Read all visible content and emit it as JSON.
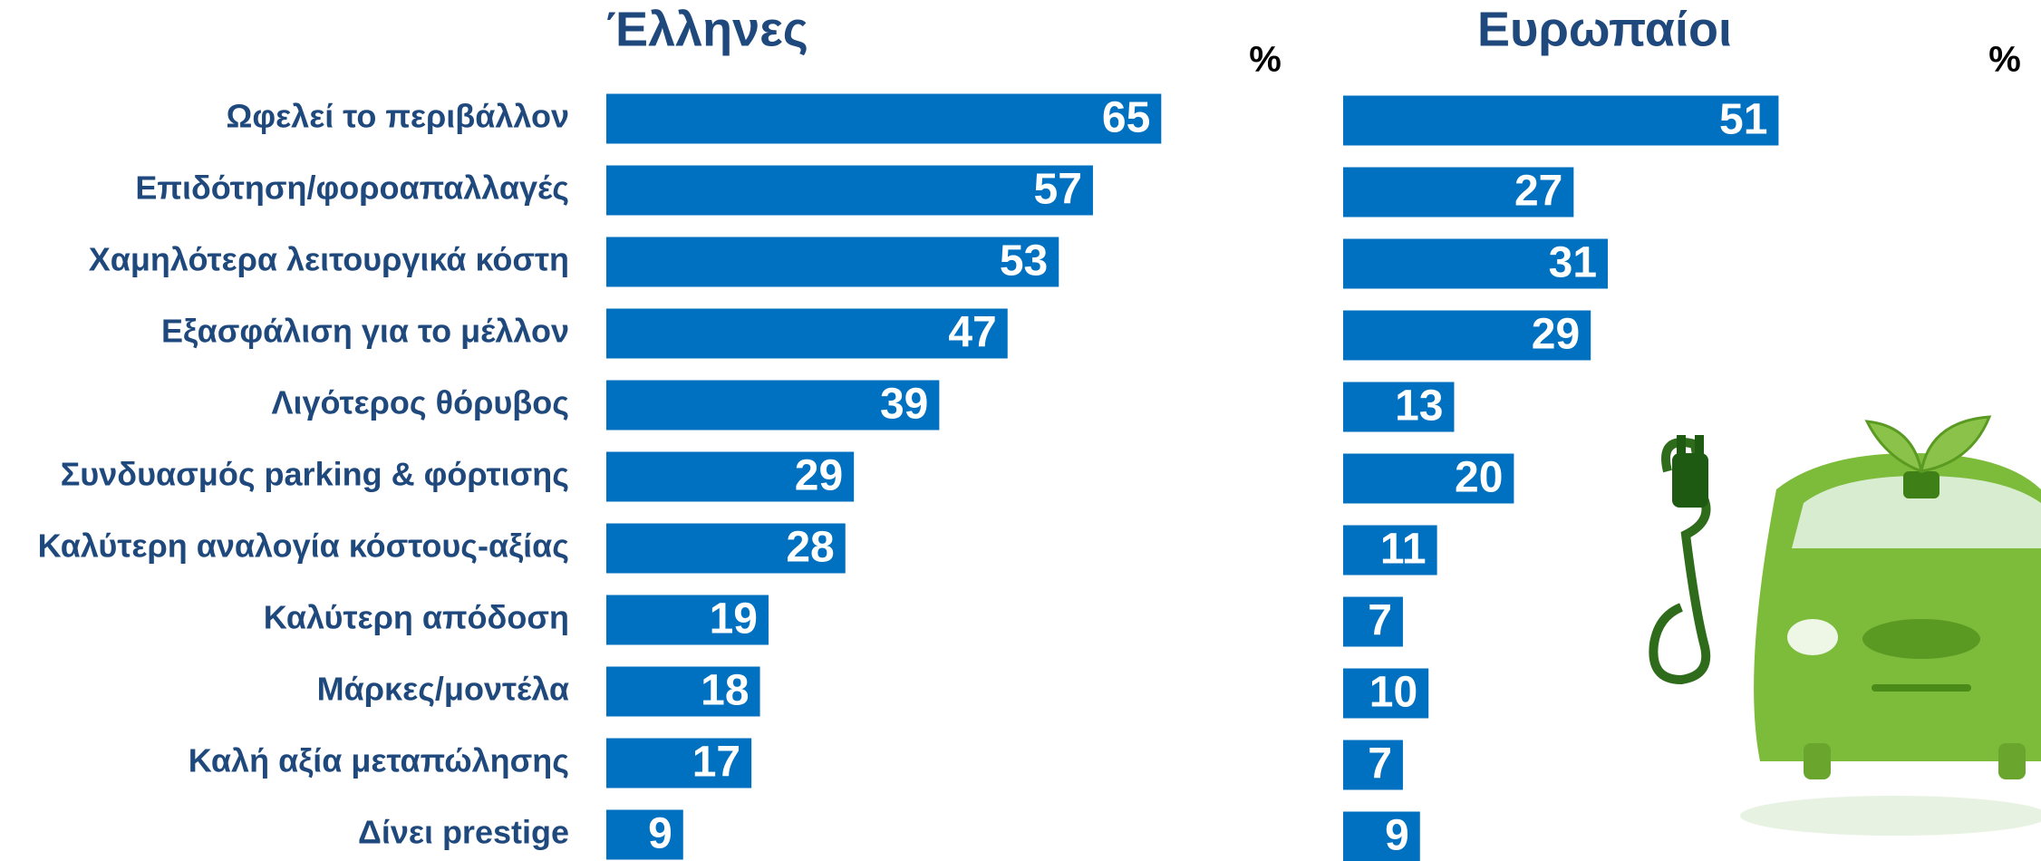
{
  "chart_data": {
    "type": "bar",
    "categories": [
      "Ωφελεί το περιβάλλον",
      "Επιδότηση/φοροαπαλλαγές",
      "Χαμηλότερα λειτουργικά κόστη",
      "Εξασφάλιση για το μέλλον",
      "Λιγότερος θόρυβος",
      "Συνδυασμός parking & φόρτισης",
      "Καλύτερη αναλογία κόστους-αξίας",
      "Καλύτερη απόδοση",
      "Μάρκες/μοντέλα",
      "Καλή αξία μεταπώλησης",
      "Δίνει prestige"
    ],
    "series": [
      {
        "name": "Έλληνες",
        "unit": "%",
        "color": "#0070c0",
        "values": [
          65,
          57,
          53,
          47,
          39,
          29,
          28,
          19,
          18,
          17,
          9
        ]
      },
      {
        "name": "Ευρωπαίοι",
        "unit": "%",
        "color": "#0070c0",
        "values": [
          51,
          27,
          31,
          29,
          13,
          20,
          11,
          7,
          10,
          7,
          9
        ]
      }
    ]
  }
}
